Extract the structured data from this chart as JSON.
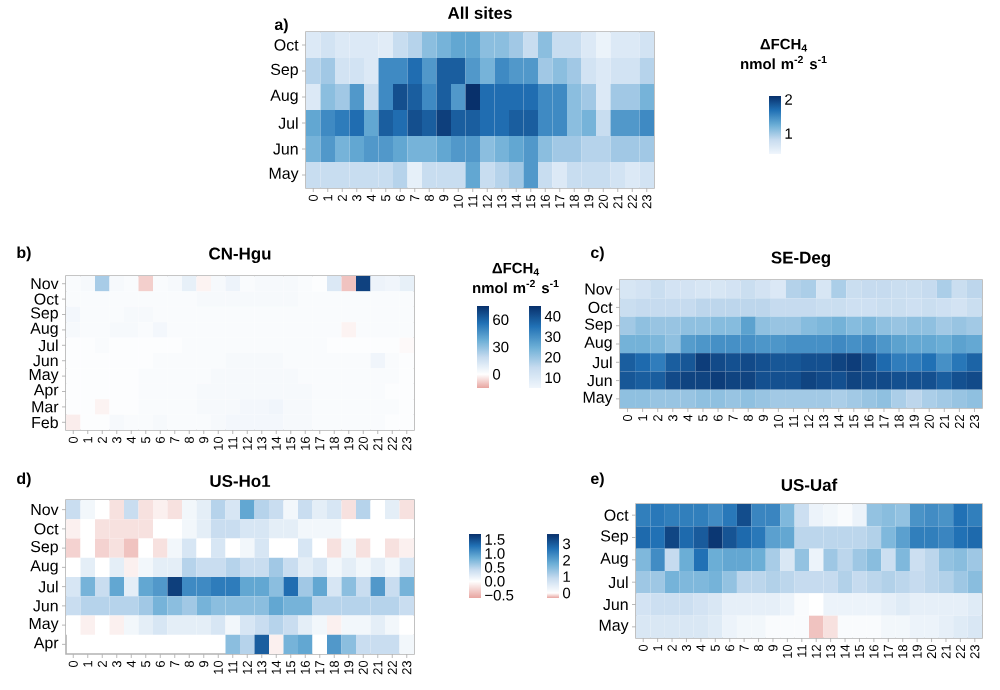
{
  "chart_data": [
    {
      "type": "heatmap",
      "title": "All sites",
      "annotations": [
        "a)"
      ],
      "clabel": "ΔFCH$_{4}$ nmol m$^{-2}$ s$^{-1}$",
      "clim": [
        0.4,
        2.1
      ],
      "cticks": [
        1,
        2
      ],
      "categories": [
        "0",
        "1",
        "2",
        "3",
        "4",
        "5",
        "6",
        "7",
        "8",
        "9",
        "10",
        "11",
        "12",
        "13",
        "14",
        "15",
        "16",
        "17",
        "18",
        "19",
        "20",
        "21",
        "22",
        "23"
      ],
      "y_categories": [
        "Oct",
        "Sep",
        "Aug",
        "Jul",
        "Jun",
        "May"
      ],
      "cells": [
        [
          0.6,
          0.7,
          0.6,
          0.6,
          0.6,
          0.55,
          0.8,
          0.9,
          1.1,
          1.2,
          1.3,
          1.3,
          1.1,
          1.1,
          1.0,
          0.8,
          1.1,
          0.8,
          0.8,
          0.6,
          0.45,
          0.6,
          0.6,
          0.7
        ],
        [
          0.9,
          1.0,
          0.7,
          0.7,
          0.6,
          1.5,
          1.5,
          1.7,
          1.4,
          1.8,
          1.8,
          1.4,
          1.2,
          1.5,
          1.4,
          1.4,
          1.0,
          1.1,
          1.0,
          0.7,
          0.6,
          0.7,
          0.7,
          0.9
        ],
        [
          0.6,
          1.1,
          1.0,
          1.4,
          0.8,
          1.5,
          1.9,
          1.8,
          1.5,
          1.8,
          1.4,
          2.1,
          1.7,
          1.7,
          1.7,
          1.7,
          1.5,
          1.5,
          1.1,
          1.0,
          0.6,
          1.0,
          1.0,
          1.2
        ],
        [
          1.3,
          1.5,
          1.6,
          1.7,
          1.3,
          1.8,
          1.7,
          1.9,
          1.8,
          2.0,
          1.8,
          1.8,
          1.7,
          1.7,
          1.8,
          1.8,
          1.5,
          1.5,
          1.1,
          1.2,
          0.8,
          1.4,
          1.4,
          1.5
        ],
        [
          1.2,
          1.4,
          1.2,
          1.3,
          1.4,
          1.4,
          1.3,
          1.2,
          1.2,
          1.3,
          1.4,
          1.4,
          1.1,
          1.2,
          1.3,
          1.4,
          1.1,
          1.0,
          1.0,
          0.9,
          0.9,
          1.0,
          1.0,
          1.0
        ],
        [
          0.8,
          0.8,
          0.8,
          0.8,
          0.8,
          0.8,
          0.9,
          0.5,
          0.8,
          0.8,
          0.8,
          1.3,
          0.8,
          0.9,
          1.0,
          1.4,
          0.8,
          0.6,
          0.8,
          0.8,
          0.8,
          0.7,
          0.6,
          0.7
        ]
      ]
    },
    {
      "type": "heatmap",
      "title": "CN-Hgu",
      "annotations": [
        "b)"
      ],
      "clabel": "ΔFCH$_{4}$ nmol m$^{-2}$ s$^{-1}$",
      "clim": [
        -15,
        75
      ],
      "cticks": [
        0,
        30,
        60
      ],
      "categories": [
        "0",
        "1",
        "2",
        "3",
        "4",
        "5",
        "6",
        "7",
        "8",
        "9",
        "10",
        "11",
        "12",
        "13",
        "14",
        "15",
        "16",
        "17",
        "18",
        "19",
        "20",
        "21",
        "22",
        "23"
      ],
      "y_categories": [
        "Nov",
        "Oct",
        "Sep",
        "Aug",
        "Jul",
        "Jun",
        "May",
        "Apr",
        "Mar",
        "Feb"
      ],
      "cells": [
        [
          2,
          3,
          25,
          3,
          2,
          -8,
          2,
          3,
          8,
          -2,
          3,
          6,
          2,
          3,
          3,
          3,
          2,
          1,
          12,
          -10,
          70,
          6,
          5,
          8
        ],
        [
          2,
          2,
          2,
          2,
          2,
          2,
          2,
          2,
          2,
          3,
          3,
          3,
          3,
          3,
          3,
          3,
          2,
          2,
          2,
          2,
          2,
          2,
          2,
          2
        ],
        [
          4,
          2,
          2,
          2,
          3,
          3,
          2,
          2,
          2,
          2,
          2,
          2,
          2,
          2,
          2,
          2,
          2,
          2,
          2,
          2,
          2,
          2,
          2,
          2
        ],
        [
          3,
          2,
          2,
          3,
          3,
          2,
          4,
          2,
          2,
          2,
          2,
          2,
          2,
          2,
          2,
          2,
          2,
          2,
          2,
          -2,
          2,
          2,
          2,
          2
        ],
        [
          1,
          1,
          2,
          1,
          1,
          1,
          1,
          1,
          2,
          2,
          2,
          2,
          2,
          2,
          2,
          2,
          2,
          2,
          1,
          1,
          1,
          1,
          1,
          -1
        ],
        [
          1,
          1,
          1,
          1,
          1,
          1,
          2,
          2,
          2,
          2,
          2,
          3,
          3,
          3,
          3,
          2,
          2,
          2,
          2,
          2,
          2,
          5,
          2,
          1
        ],
        [
          1,
          1,
          1,
          1,
          1,
          2,
          2,
          2,
          2,
          2,
          3,
          3,
          3,
          3,
          3,
          3,
          2,
          2,
          2,
          2,
          2,
          2,
          2,
          1
        ],
        [
          1,
          1,
          1,
          1,
          1,
          2,
          2,
          2,
          2,
          3,
          3,
          3,
          3,
          3,
          3,
          3,
          3,
          2,
          2,
          2,
          2,
          2,
          1,
          1
        ],
        [
          1,
          1,
          -2,
          1,
          1,
          2,
          2,
          2,
          2,
          3,
          3,
          3,
          4,
          4,
          5,
          3,
          3,
          2,
          2,
          2,
          2,
          2,
          2,
          1
        ],
        [
          -3,
          1,
          1,
          3,
          2,
          2,
          3,
          2,
          2,
          2,
          3,
          4,
          4,
          4,
          4,
          3,
          3,
          2,
          2,
          2,
          2,
          2,
          1,
          1
        ]
      ]
    },
    {
      "type": "heatmap",
      "title": "SE-Deg",
      "annotations": [
        "c)"
      ],
      "clim": [
        5,
        45
      ],
      "cticks": [
        10,
        20,
        30,
        40
      ],
      "categories": [
        "0",
        "1",
        "2",
        "3",
        "4",
        "5",
        "6",
        "7",
        "8",
        "9",
        "10",
        "11",
        "12",
        "13",
        "14",
        "15",
        "16",
        "17",
        "18",
        "19",
        "20",
        "21",
        "22",
        "23"
      ],
      "y_categories": [
        "Nov",
        "Oct",
        "Sep",
        "Aug",
        "Jul",
        "Jun",
        "May"
      ],
      "cells": [
        [
          11,
          12,
          14,
          12,
          12,
          11,
          11,
          12,
          14,
          12,
          10,
          17,
          18,
          11,
          18,
          14,
          15,
          15,
          14,
          14,
          15,
          18,
          14,
          16
        ],
        [
          14,
          15,
          15,
          15,
          15,
          16,
          16,
          16,
          16,
          16,
          15,
          15,
          15,
          14,
          14,
          13,
          13,
          14,
          14,
          13,
          14,
          13,
          12,
          14
        ],
        [
          19,
          21,
          20,
          20,
          21,
          21,
          22,
          22,
          27,
          21,
          20,
          20,
          22,
          23,
          24,
          22,
          23,
          21,
          20,
          21,
          21,
          19,
          20,
          19
        ],
        [
          24,
          24,
          23,
          21,
          28,
          29,
          30,
          30,
          30,
          29,
          29,
          30,
          30,
          30,
          31,
          30,
          31,
          29,
          27,
          26,
          26,
          25,
          27,
          26
        ],
        [
          38,
          36,
          33,
          38,
          39,
          43,
          41,
          40,
          41,
          40,
          39,
          39,
          40,
          40,
          42,
          43,
          40,
          36,
          33,
          33,
          35,
          30,
          34,
          37
        ],
        [
          39,
          38,
          38,
          41,
          42,
          42,
          43,
          42,
          42,
          40,
          40,
          40,
          42,
          41,
          40,
          42,
          41,
          41,
          40,
          40,
          40,
          38,
          40,
          41
        ],
        [
          21,
          21,
          20,
          20,
          20,
          21,
          21,
          20,
          21,
          20,
          19,
          19,
          19,
          19,
          18,
          19,
          20,
          21,
          18,
          16,
          18,
          19,
          20,
          21
        ]
      ]
    },
    {
      "type": "heatmap",
      "title": "US-Ho1",
      "annotations": [
        "d)"
      ],
      "clim": [
        -0.6,
        1.7
      ],
      "cticks": [
        {
          "value": -0.5,
          "label": "−0.5"
        },
        {
          "value": 0,
          "label": "0.0"
        },
        {
          "value": 0.5,
          "label": "0.5"
        },
        {
          "value": 1,
          "label": "1.0"
        },
        {
          "value": 1.5,
          "label": "1.5"
        }
      ],
      "categories": [
        "0",
        "1",
        "2",
        "3",
        "4",
        "5",
        "6",
        "7",
        "8",
        "9",
        "10",
        "11",
        "12",
        "13",
        "14",
        "15",
        "16",
        "17",
        "18",
        "19",
        "20",
        "21",
        "22",
        "23"
      ],
      "y_categories": [
        "Nov",
        "Oct",
        "Sep",
        "Aug",
        "Jul",
        "Jun",
        "May",
        "Apr"
      ],
      "cells": [
        [
          0.4,
          0.1,
          0.0,
          -0.2,
          0.4,
          -0.2,
          -0.1,
          -0.2,
          0.1,
          0.2,
          0.5,
          0.3,
          0.9,
          0.5,
          0.4,
          0.1,
          0.4,
          0.2,
          0.3,
          -0.2,
          0.5,
          0.0,
          0.2,
          -0.2
        ],
        [
          -0.1,
          0.0,
          -0.2,
          -0.2,
          -0.2,
          -0.2,
          0.0,
          0.0,
          0.1,
          0.2,
          0.4,
          0.4,
          0.3,
          0.3,
          0.2,
          0.2,
          0.1,
          0.1,
          0.1,
          0.0,
          0.0,
          0.0,
          0.0,
          0.0
        ],
        [
          -0.3,
          0.0,
          -0.3,
          -0.2,
          -0.4,
          0.0,
          -0.2,
          0.1,
          0.3,
          0.0,
          0.3,
          0.0,
          0.1,
          0.3,
          0.0,
          0.0,
          0.3,
          0.0,
          -0.2,
          0.1,
          -0.2,
          0.0,
          -0.2,
          -0.1
        ],
        [
          0.0,
          0.2,
          0.0,
          0.2,
          -0.1,
          0.1,
          0.2,
          0.2,
          0.5,
          0.4,
          0.4,
          0.5,
          0.4,
          0.4,
          0.6,
          0.4,
          0.2,
          0.3,
          0.1,
          0.2,
          0.1,
          0.2,
          0.1,
          0.3
        ],
        [
          0.3,
          0.8,
          0.4,
          0.9,
          0.2,
          0.9,
          1.0,
          1.6,
          1.1,
          1.1,
          1.2,
          1.2,
          0.9,
          0.9,
          0.7,
          1.3,
          0.6,
          0.9,
          0.3,
          0.7,
          0.4,
          1.0,
          0.4,
          0.8
        ],
        [
          0.4,
          0.5,
          0.5,
          0.5,
          0.5,
          0.6,
          0.8,
          0.7,
          0.6,
          0.8,
          0.7,
          0.7,
          0.7,
          0.7,
          0.9,
          0.8,
          0.8,
          0.5,
          0.5,
          0.5,
          0.5,
          0.5,
          0.5,
          0.4
        ],
        [
          0.0,
          -0.1,
          0.0,
          -0.1,
          0.1,
          0.2,
          0.3,
          0.2,
          0.2,
          0.2,
          0.3,
          0.1,
          0.3,
          0.4,
          0.5,
          0.4,
          0.2,
          0.1,
          -0.1,
          0.1,
          0.1,
          0.2,
          0.1,
          0.0
        ],
        [
          null,
          null,
          null,
          null,
          null,
          null,
          null,
          null,
          null,
          null,
          null,
          0.7,
          0.5,
          1.4,
          -0.1,
          0.8,
          0.9,
          0.0,
          1.0,
          0.7,
          0.4,
          0.4,
          0.4,
          0.1
        ]
      ]
    },
    {
      "type": "heatmap",
      "title": "US-Uaf",
      "annotations": [
        "e)"
      ],
      "clim": [
        -0.3,
        3.6
      ],
      "cticks": [
        0,
        1,
        2,
        3
      ],
      "categories": [
        "0",
        "1",
        "2",
        "3",
        "4",
        "5",
        "6",
        "7",
        "8",
        "9",
        "10",
        "11",
        "12",
        "13",
        "14",
        "15",
        "16",
        "17",
        "18",
        "19",
        "20",
        "21",
        "22",
        "23"
      ],
      "y_categories": [
        "Oct",
        "Sep",
        "Aug",
        "Jul",
        "Jun",
        "May"
      ],
      "cells": [
        [
          2.5,
          2.6,
          2.5,
          2.5,
          2.5,
          2.3,
          2.6,
          3.2,
          2.4,
          2.4,
          1.6,
          0.8,
          0.3,
          0.2,
          0.1,
          0.3,
          1.4,
          1.5,
          1.4,
          2.2,
          2.3,
          2.2,
          2.7,
          2.5
        ],
        [
          2.8,
          2.7,
          3.3,
          2.8,
          3.0,
          3.5,
          3.1,
          2.8,
          2.6,
          2.0,
          1.9,
          1.0,
          1.0,
          1.0,
          1.0,
          1.0,
          1.1,
          1.6,
          2.0,
          2.5,
          2.5,
          2.4,
          2.7,
          2.8
        ],
        [
          1.6,
          2.3,
          0.9,
          1.8,
          2.7,
          1.8,
          1.9,
          1.9,
          1.8,
          1.2,
          0.6,
          1.4,
          0.3,
          1.3,
          1.0,
          1.3,
          1.5,
          0.8,
          1.6,
          0.8,
          1.0,
          1.4,
          1.5,
          1.3
        ],
        [
          1.3,
          1.3,
          1.7,
          1.6,
          1.6,
          1.7,
          1.4,
          1.0,
          1.0,
          1.1,
          1.0,
          0.9,
          0.9,
          0.9,
          1.1,
          0.9,
          1.0,
          1.1,
          1.0,
          0.9,
          1.0,
          1.1,
          1.3,
          1.5
        ],
        [
          0.7,
          0.8,
          0.8,
          0.8,
          0.7,
          0.6,
          0.4,
          0.4,
          0.4,
          0.4,
          0.3,
          0.1,
          0.0,
          0.3,
          0.3,
          0.3,
          0.3,
          0.4,
          0.5,
          0.4,
          0.4,
          0.4,
          0.4,
          0.5
        ],
        [
          0.6,
          0.6,
          0.6,
          0.6,
          0.6,
          0.5,
          0.3,
          0.2,
          0.2,
          0.1,
          0.1,
          0.1,
          -0.2,
          -0.1,
          0.1,
          0.1,
          0.1,
          0.2,
          0.2,
          0.3,
          0.3,
          0.4,
          0.5,
          0.6
        ]
      ]
    }
  ]
}
